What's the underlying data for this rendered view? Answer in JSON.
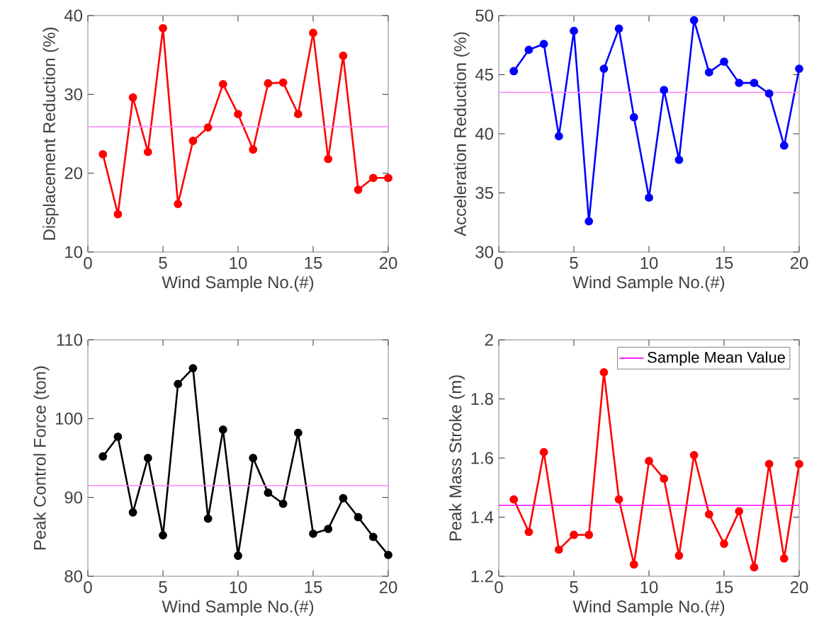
{
  "chart_data": [
    {
      "type": "line",
      "xlabel": "Wind Sample No.(#)",
      "ylabel": "Displacement Reduction (%)",
      "x": [
        1,
        2,
        3,
        4,
        5,
        6,
        7,
        8,
        9,
        10,
        11,
        12,
        13,
        14,
        15,
        16,
        17,
        18,
        19,
        20
      ],
      "xlim": [
        0,
        20
      ],
      "xticks": [
        0,
        5,
        10,
        15,
        20
      ],
      "ylim": [
        10,
        40
      ],
      "yticks": [
        10,
        20,
        30,
        40
      ],
      "marker": "circle",
      "line_style": "solid",
      "series": [
        {
          "color": "#ff0000",
          "values": [
            22.4,
            14.8,
            29.6,
            22.7,
            38.4,
            16.1,
            24.1,
            25.8,
            31.3,
            27.5,
            23.0,
            31.4,
            31.5,
            27.5,
            37.8,
            21.8,
            34.9,
            17.9,
            19.4,
            19.4
          ]
        }
      ],
      "ref_lines": [
        {
          "axis": "y",
          "value": 25.9,
          "color": "#ff80ff"
        }
      ]
    },
    {
      "type": "line",
      "xlabel": "Wind Sample No.(#)",
      "ylabel": "Acceleration Reduction (%)",
      "x": [
        1,
        2,
        3,
        4,
        5,
        6,
        7,
        8,
        9,
        10,
        11,
        12,
        13,
        14,
        15,
        16,
        17,
        18,
        19,
        20
      ],
      "xlim": [
        0,
        20
      ],
      "xticks": [
        0,
        5,
        10,
        15,
        20
      ],
      "ylim": [
        30,
        50
      ],
      "yticks": [
        30,
        35,
        40,
        45,
        50
      ],
      "marker": "circle",
      "line_style": "solid",
      "series": [
        {
          "color": "#0000ff",
          "values": [
            45.3,
            47.1,
            47.6,
            39.8,
            48.7,
            32.6,
            45.5,
            48.9,
            41.4,
            34.6,
            43.7,
            37.8,
            49.6,
            45.2,
            46.1,
            44.3,
            44.3,
            43.4,
            39.0,
            45.5
          ]
        }
      ],
      "ref_lines": [
        {
          "axis": "y",
          "value": 43.5,
          "color": "#ff80ff"
        }
      ]
    },
    {
      "type": "line",
      "xlabel": "Wind Sample No.(#)",
      "ylabel": "Peak Control Force (ton)",
      "x": [
        1,
        2,
        3,
        4,
        5,
        6,
        7,
        8,
        9,
        10,
        11,
        12,
        13,
        14,
        15,
        16,
        17,
        18,
        19,
        20
      ],
      "xlim": [
        0,
        20
      ],
      "xticks": [
        0,
        5,
        10,
        15,
        20
      ],
      "ylim": [
        80,
        110
      ],
      "yticks": [
        80,
        90,
        100,
        110
      ],
      "marker": "circle",
      "line_style": "solid",
      "series": [
        {
          "color": "#000000",
          "values": [
            95.2,
            97.7,
            88.1,
            95.0,
            85.2,
            104.4,
            106.4,
            87.3,
            98.6,
            82.6,
            95.0,
            90.6,
            89.2,
            98.2,
            85.4,
            86.0,
            89.9,
            87.5,
            85.0,
            82.7
          ]
        }
      ],
      "ref_lines": [
        {
          "axis": "y",
          "value": 91.5,
          "color": "#ff80ff"
        }
      ]
    },
    {
      "type": "line",
      "xlabel": "Wind Sample No.(#)",
      "ylabel": "Peak Mass Stroke (m)",
      "x": [
        1,
        2,
        3,
        4,
        5,
        6,
        7,
        8,
        9,
        10,
        11,
        12,
        13,
        14,
        15,
        16,
        17,
        18,
        19,
        20
      ],
      "xlim": [
        0,
        20
      ],
      "xticks": [
        0,
        5,
        10,
        15,
        20
      ],
      "ylim": [
        1.2,
        2
      ],
      "yticks": [
        1.2,
        1.4,
        1.6,
        1.8,
        2
      ],
      "marker": "circle",
      "line_style": "solid",
      "legend": "top right",
      "series": [
        {
          "color": "#ff0000",
          "values": [
            1.46,
            1.35,
            1.62,
            1.29,
            1.34,
            1.34,
            1.89,
            1.46,
            1.24,
            1.59,
            1.53,
            1.27,
            1.61,
            1.41,
            1.31,
            1.42,
            1.23,
            1.58,
            1.26,
            1.58
          ]
        }
      ],
      "ref_lines": [
        {
          "axis": "y",
          "value": 1.44,
          "color": "#ff00ff",
          "label": "Sample Mean Value"
        }
      ]
    }
  ]
}
